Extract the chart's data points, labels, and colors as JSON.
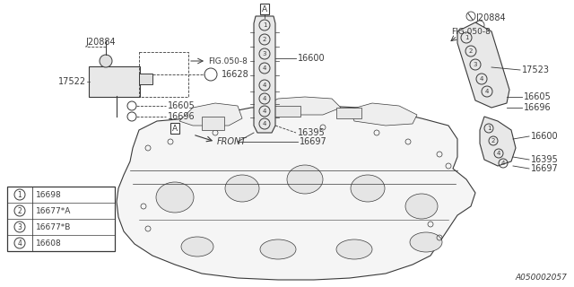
{
  "bg_color": "#ffffff",
  "line_color": "#3a3a3a",
  "catalog_num": "A050002057",
  "legend_items": [
    {
      "num": "1",
      "code": "16698"
    },
    {
      "num": "2",
      "code": "16677*A"
    },
    {
      "num": "3",
      "code": "16677*B"
    },
    {
      "num": "4",
      "code": "16608"
    }
  ],
  "font_size": 7.0
}
